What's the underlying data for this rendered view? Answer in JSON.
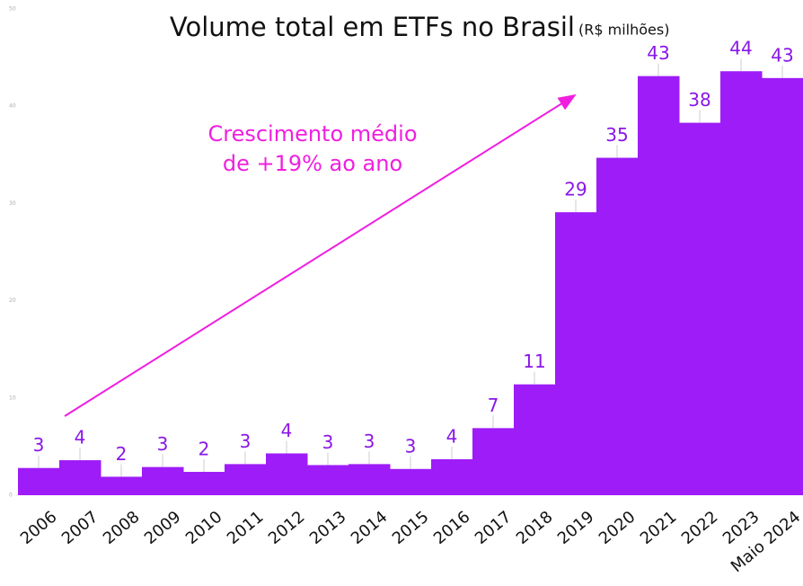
{
  "chart_data": {
    "type": "bar",
    "title": "Volume total em ETFs no Brasil",
    "subtitle": "(R$ milhões)",
    "annotation": [
      "Crescimento médio",
      "de +19% ao ano"
    ],
    "categories": [
      "2006",
      "2007",
      "2008",
      "2009",
      "2010",
      "2011",
      "2012",
      "2013",
      "2014",
      "2015",
      "2016",
      "2017",
      "2018",
      "2019",
      "2020",
      "2021",
      "2022",
      "2023",
      "Maio 2024"
    ],
    "values": [
      2.8,
      3.6,
      1.9,
      2.9,
      2.4,
      3.2,
      4.3,
      3.1,
      3.2,
      2.7,
      3.7,
      6.9,
      11.4,
      29.1,
      34.7,
      43.1,
      38.3,
      43.6,
      42.9
    ],
    "value_labels": [
      "3",
      "4",
      "2",
      "3",
      "2",
      "3",
      "4",
      "3",
      "3",
      "3",
      "4",
      "7",
      "11",
      "29",
      "35",
      "43",
      "38",
      "44",
      "43"
    ],
    "color": "#9d1cf7",
    "ylim": [
      0,
      50
    ],
    "yticks": [
      0,
      10,
      20,
      30,
      40,
      50
    ]
  }
}
